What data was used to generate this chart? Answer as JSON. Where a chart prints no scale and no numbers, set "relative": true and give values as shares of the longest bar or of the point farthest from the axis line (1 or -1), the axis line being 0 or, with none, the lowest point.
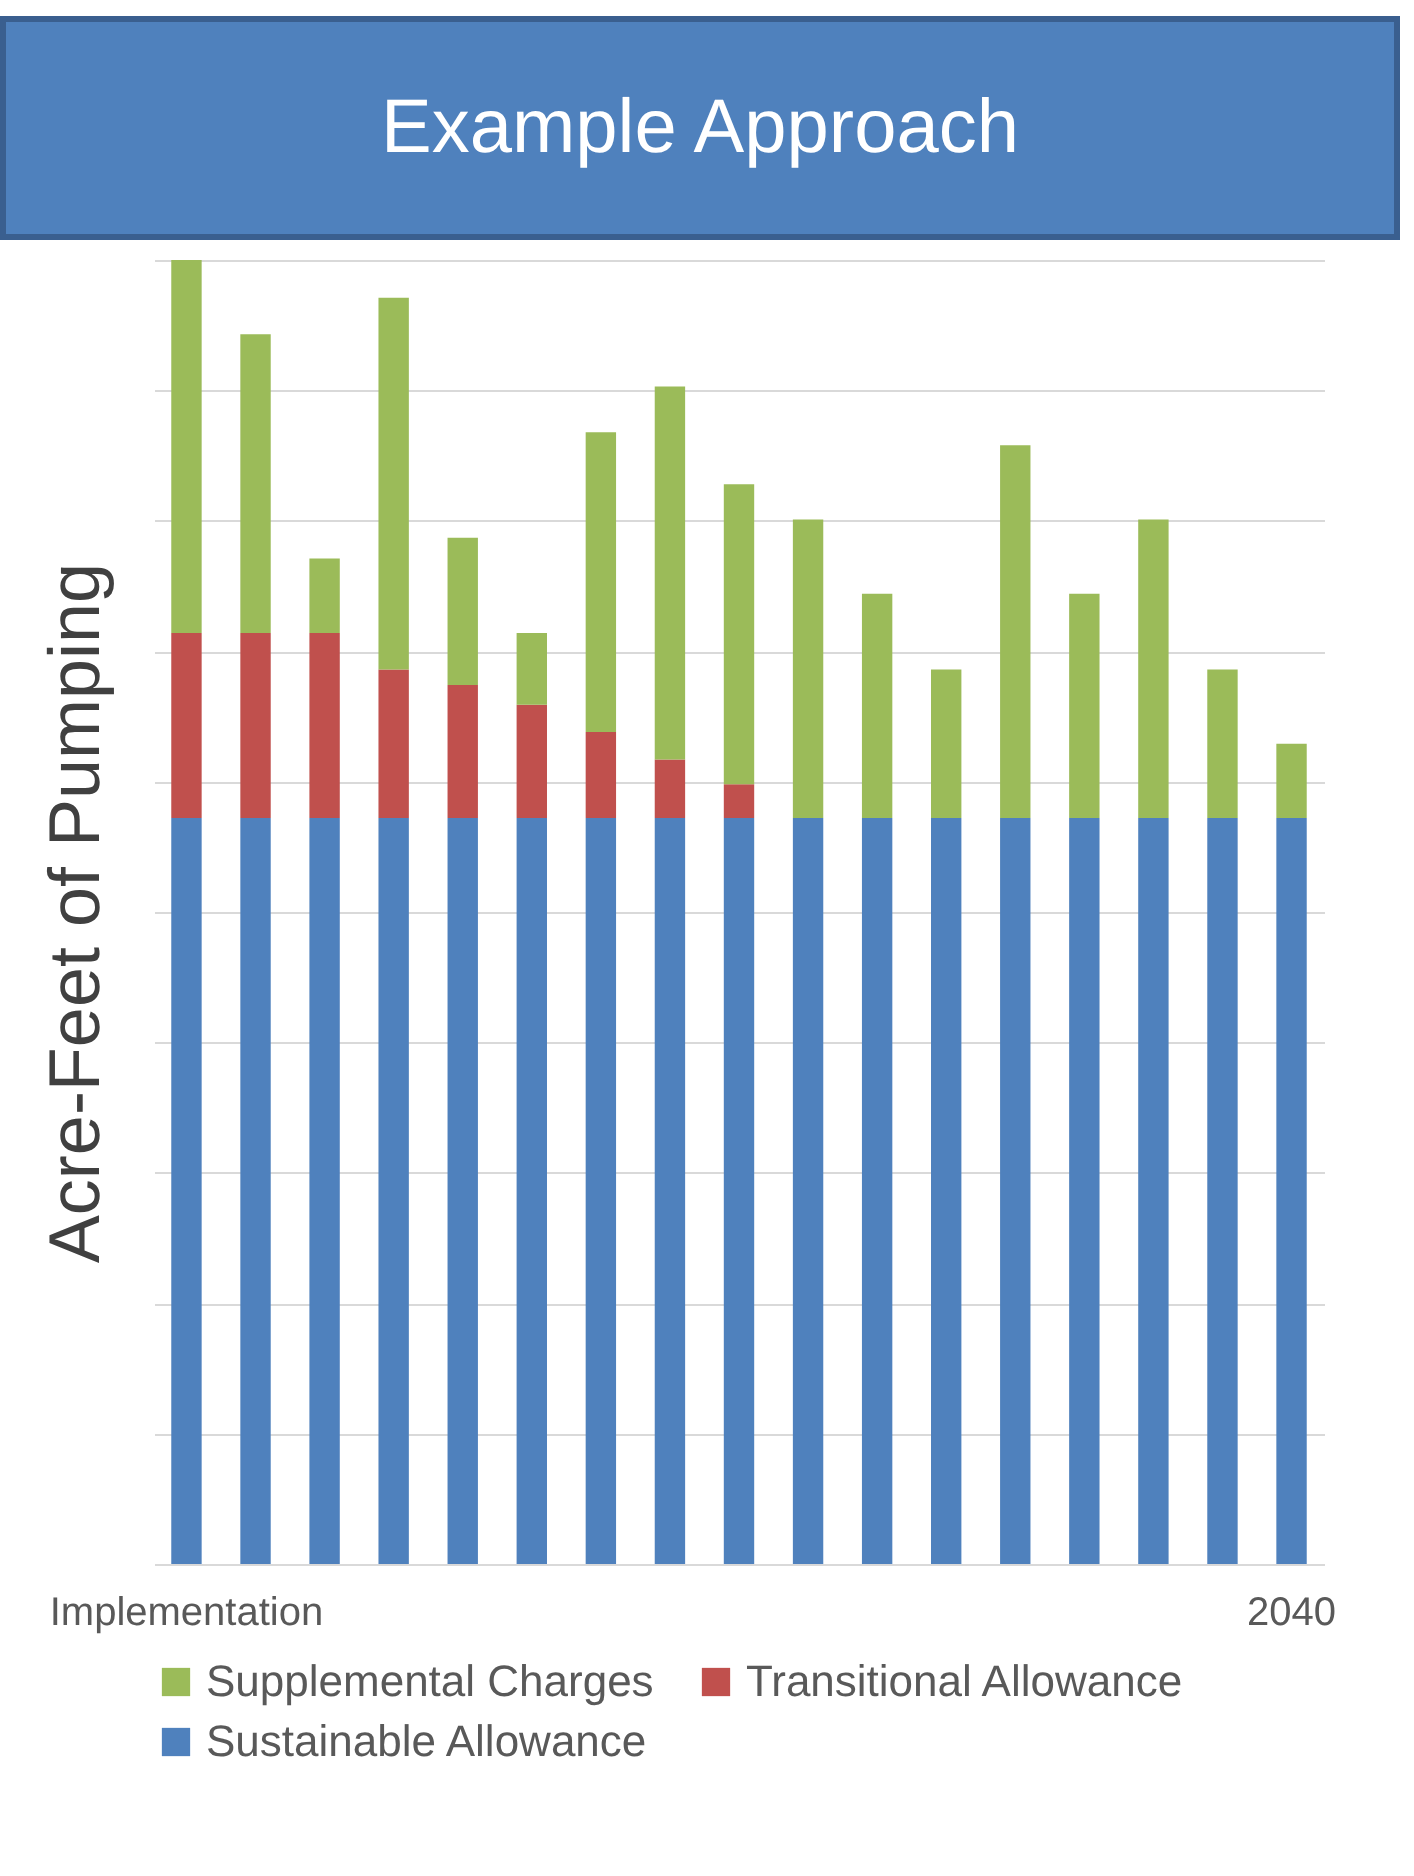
{
  "chart_data": {
    "type": "bar",
    "title": "Example Approach",
    "ylabel": "Acre-Feet of Pumping",
    "relative": true,
    "stacked": true,
    "grid": "y",
    "legend": "bottom",
    "categories": [
      "Implementation",
      null,
      null,
      null,
      null,
      null,
      null,
      null,
      null,
      null,
      null,
      null,
      null,
      null,
      null,
      null,
      "2040"
    ],
    "series": [
      {
        "name": "Sustainable Allowance",
        "color": "#4f81bd",
        "values": [
          0.572,
          0.572,
          0.572,
          0.572,
          0.572,
          0.572,
          0.572,
          0.572,
          0.572,
          0.572,
          0.572,
          0.572,
          0.572,
          0.572,
          0.572,
          0.572,
          0.572
        ]
      },
      {
        "name": "Transitional Allowance",
        "color": "#c0504d",
        "values": [
          0.142,
          0.142,
          0.142,
          0.114,
          0.102,
          0.087,
          0.066,
          0.045,
          0.026,
          null,
          null,
          null,
          null,
          null,
          null,
          null,
          null
        ]
      },
      {
        "name": "Supplemental Charges",
        "color": "#9bbb59",
        "values": [
          0.286,
          0.229,
          0.057,
          0.285,
          0.113,
          0.055,
          0.23,
          0.286,
          0.23,
          0.229,
          0.172,
          0.114,
          0.286,
          0.172,
          0.229,
          0.114,
          0.057
        ]
      }
    ]
  }
}
